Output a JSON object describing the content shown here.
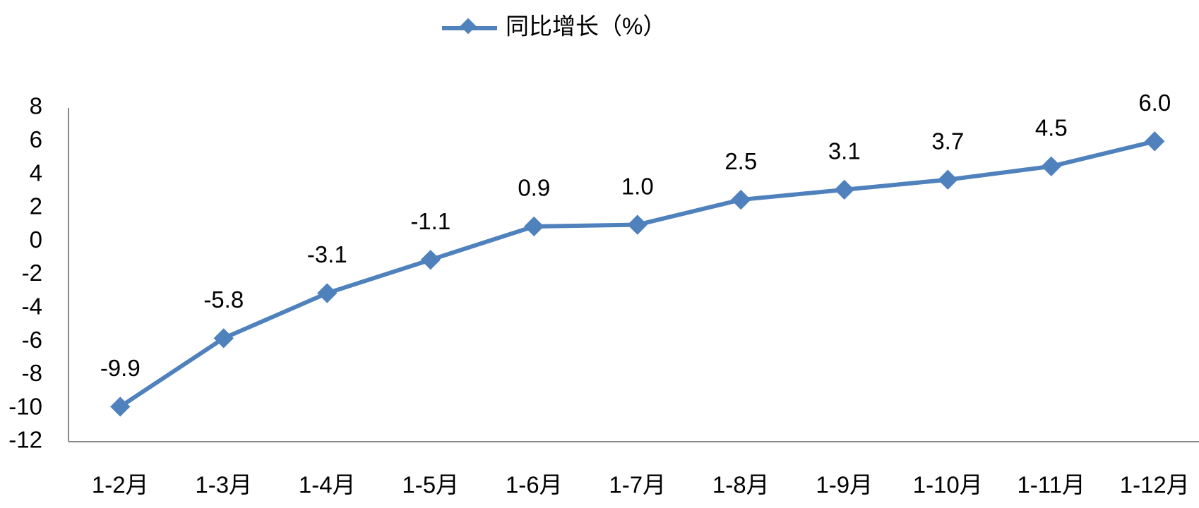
{
  "chart_data": {
    "type": "line",
    "categories": [
      "1-2月",
      "1-3月",
      "1-4月",
      "1-5月",
      "1-6月",
      "1-7月",
      "1-8月",
      "1-9月",
      "1-10月",
      "1-11月",
      "1-12月"
    ],
    "series": [
      {
        "name": "同比增长（%）",
        "color": "#4f81bd",
        "values": [
          -9.9,
          -5.8,
          -3.1,
          -1.1,
          0.9,
          1.0,
          2.5,
          3.1,
          3.7,
          4.5,
          6.0
        ],
        "value_labels": [
          "-9.9",
          "-5.8",
          "-3.1",
          "-1.1",
          "0.9",
          "1.0",
          "2.5",
          "3.1",
          "3.7",
          "4.5",
          "6.0"
        ]
      }
    ],
    "ylim": [
      -12,
      8
    ],
    "yticks": [
      -12,
      -10,
      -8,
      -6,
      -4,
      -2,
      0,
      2,
      4,
      6,
      8
    ],
    "legend": "top",
    "grid": false
  }
}
